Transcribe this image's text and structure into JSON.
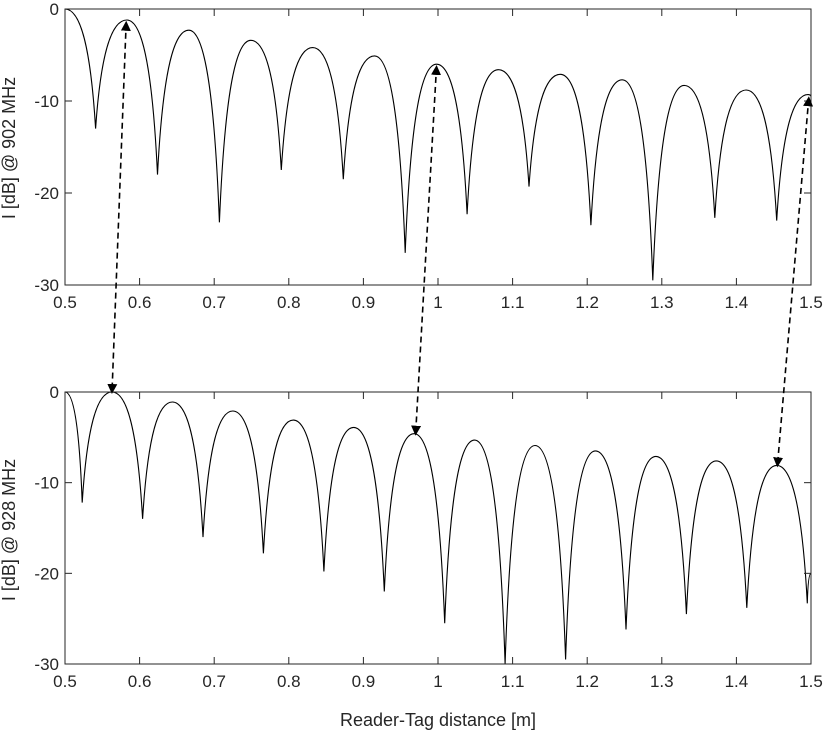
{
  "chart_data": [
    {
      "type": "line",
      "ylabel": "I [dB] @ 902 MHz",
      "xlabel": "",
      "xlim": [
        0.5,
        1.5
      ],
      "ylim": [
        -30,
        0
      ],
      "xticks": [
        "0.5",
        "0.6",
        "0.7",
        "0.8",
        "0.9",
        "1",
        "1.1",
        "1.2",
        "1.3",
        "1.4",
        "1.5"
      ],
      "yticks": [
        "0",
        "-10",
        "-20",
        "-30"
      ],
      "grid": false,
      "series": [
        {
          "x": [
            0.5,
            0.541,
            0.583,
            0.624,
            0.666,
            0.707,
            0.749,
            0.79,
            0.832,
            0.873,
            0.915,
            0.956,
            0.998,
            1.039,
            1.081,
            1.122,
            1.164,
            1.205,
            1.247,
            1.288,
            1.33,
            1.371,
            1.413,
            1.454,
            1.496,
            1.5
          ],
          "y": [
            0,
            -13,
            -1.2,
            -18,
            -2.3,
            -23.2,
            -3.4,
            -17.5,
            -4.2,
            -18.5,
            -5.1,
            -26.5,
            -6,
            -22.3,
            -6.6,
            -19.3,
            -7.1,
            -23.5,
            -7.7,
            -29.5,
            -8.3,
            -22.7,
            -8.8,
            -23,
            -9.3,
            -9.5
          ]
        }
      ],
      "annotations": [
        {
          "type": "double-arrow",
          "from": [
            0.582,
            -1.5
          ],
          "to": [
            0.563,
            0
          ]
        },
        {
          "type": "double-arrow",
          "from": [
            0.998,
            -6.3
          ],
          "to": [
            0.97,
            -4.6
          ]
        },
        {
          "type": "double-arrow",
          "from": [
            1.497,
            -9.7
          ],
          "to": [
            1.455,
            -8.1
          ]
        }
      ]
    },
    {
      "type": "line",
      "ylabel": "I [dB] @ 928 MHz",
      "xlabel": "Reader-Tag distance [m]",
      "xlim": [
        0.5,
        1.5
      ],
      "ylim": [
        -30,
        0
      ],
      "xticks": [
        "0.5",
        "0.6",
        "0.7",
        "0.8",
        "0.9",
        "1",
        "1.1",
        "1.2",
        "1.3",
        "1.4",
        "1.5"
      ],
      "yticks": [
        "0",
        "-10",
        "-20",
        "-30"
      ],
      "grid": false,
      "series": [
        {
          "x": [
            0.5,
            0.523,
            0.563,
            0.604,
            0.644,
            0.685,
            0.725,
            0.766,
            0.806,
            0.847,
            0.887,
            0.928,
            0.968,
            1.009,
            1.049,
            1.09,
            1.13,
            1.171,
            1.211,
            1.252,
            1.292,
            1.333,
            1.373,
            1.414,
            1.454,
            1.495,
            1.5
          ],
          "y": [
            0,
            -12.2,
            0,
            -14,
            -1.1,
            -16,
            -2.1,
            -17.8,
            -3.1,
            -19.8,
            -3.9,
            -22,
            -4.6,
            -25.5,
            -5.3,
            -30,
            -5.9,
            -29.5,
            -6.5,
            -26.2,
            -7.1,
            -24.5,
            -7.6,
            -23.8,
            -8.1,
            -23.3,
            -20
          ]
        }
      ],
      "annotations": []
    }
  ]
}
